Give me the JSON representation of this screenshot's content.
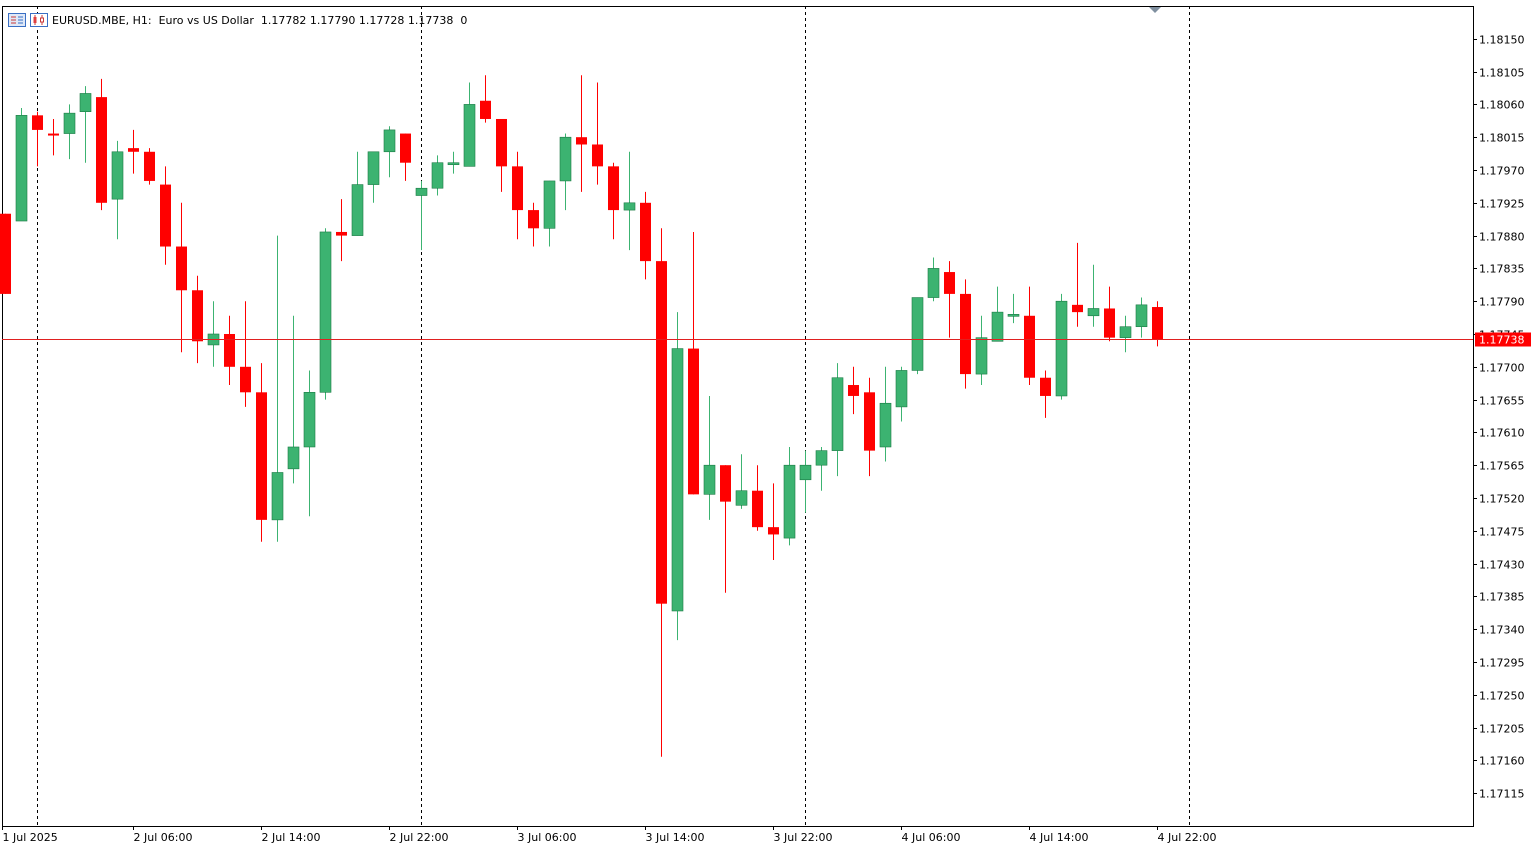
{
  "header": {
    "symbol": "EURUSD.MBE, H1:",
    "description": "Euro vs US Dollar",
    "ohlc": "1.17782 1.17790 1.17728 1.17738",
    "volume": "0"
  },
  "icons": {
    "menu": "chart-list-icon",
    "chart": "candlestick-chart-icon",
    "scroll_marker": "shift-marker-icon"
  },
  "colors": {
    "bull": "#3cb371",
    "bear": "#ff0000",
    "price_line": "#e02020",
    "axis": "#000000"
  },
  "chart_data": {
    "type": "candlestick",
    "symbol": "EURUSD.MBE",
    "timeframe": "H1",
    "ylim": [
      1.1707,
      1.18195
    ],
    "y_ticks": [
      "1.18150",
      "1.18105",
      "1.18060",
      "1.18015",
      "1.17970",
      "1.17925",
      "1.17880",
      "1.17835",
      "1.17790",
      "1.17745",
      "1.17700",
      "1.17655",
      "1.17610",
      "1.17565",
      "1.17520",
      "1.17475",
      "1.17430",
      "1.17385",
      "1.17340",
      "1.17295",
      "1.17250",
      "1.17205",
      "1.17160",
      "1.17115"
    ],
    "x_labels": [
      {
        "label": "1 Jul 2025",
        "index": -0.2
      },
      {
        "label": "2 Jul 06:00",
        "index": 8
      },
      {
        "label": "2 Jul 14:00",
        "index": 16
      },
      {
        "label": "2 Jul 22:00",
        "index": 24
      },
      {
        "label": "3 Jul 06:00",
        "index": 32
      },
      {
        "label": "3 Jul 14:00",
        "index": 40
      },
      {
        "label": "3 Jul 22:00",
        "index": 48
      },
      {
        "label": "4 Jul 06:00",
        "index": 56
      },
      {
        "label": "4 Jul 14:00",
        "index": 64
      },
      {
        "label": "4 Jul 22:00",
        "index": 72
      }
    ],
    "separators": [
      2,
      26,
      50,
      74
    ],
    "current_price": "1.17738",
    "grid": false,
    "candles": [
      [
        1.1791,
        1.1791,
        1.178,
        1.178
      ],
      [
        1.179,
        1.18055,
        1.179,
        1.18045
      ],
      [
        1.18045,
        1.1805,
        1.17975,
        1.18025
      ],
      [
        1.1802,
        1.1804,
        1.1799,
        1.18018
      ],
      [
        1.1802,
        1.1806,
        1.17985,
        1.18048
      ],
      [
        1.1805,
        1.18085,
        1.1798,
        1.18075
      ],
      [
        1.1807,
        1.18095,
        1.17915,
        1.17925
      ],
      [
        1.1793,
        1.1801,
        1.17875,
        1.17995
      ],
      [
        1.18,
        1.18025,
        1.17965,
        1.17995
      ],
      [
        1.17995,
        1.18,
        1.1795,
        1.17955
      ],
      [
        1.1795,
        1.17975,
        1.1784,
        1.17865
      ],
      [
        1.17865,
        1.17925,
        1.1772,
        1.17805
      ],
      [
        1.17805,
        1.17825,
        1.17705,
        1.17735
      ],
      [
        1.1773,
        1.1779,
        1.177,
        1.17745
      ],
      [
        1.17745,
        1.1777,
        1.17675,
        1.177
      ],
      [
        1.177,
        1.1779,
        1.17645,
        1.17665
      ],
      [
        1.17665,
        1.17705,
        1.1746,
        1.1749
      ],
      [
        1.1749,
        1.1788,
        1.1746,
        1.17555
      ],
      [
        1.1756,
        1.1777,
        1.1754,
        1.1759
      ],
      [
        1.1759,
        1.17695,
        1.17495,
        1.17665
      ],
      [
        1.17665,
        1.1789,
        1.17655,
        1.17885
      ],
      [
        1.17885,
        1.1793,
        1.17845,
        1.1788
      ],
      [
        1.1788,
        1.17995,
        1.1788,
        1.1795
      ],
      [
        1.1795,
        1.17995,
        1.17925,
        1.17995
      ],
      [
        1.17995,
        1.1803,
        1.1796,
        1.18025
      ],
      [
        1.1802,
        1.1802,
        1.17955,
        1.1798
      ],
      [
        1.17935,
        1.17955,
        1.1786,
        1.17945
      ],
      [
        1.17945,
        1.1799,
        1.17935,
        1.1798
      ],
      [
        1.17978,
        1.17995,
        1.17965,
        1.1798
      ],
      [
        1.17975,
        1.1809,
        1.17975,
        1.1806
      ],
      [
        1.18065,
        1.181,
        1.18035,
        1.1804
      ],
      [
        1.1804,
        1.1804,
        1.1794,
        1.17975
      ],
      [
        1.17975,
        1.17995,
        1.17875,
        1.17915
      ],
      [
        1.17915,
        1.17925,
        1.17865,
        1.1789
      ],
      [
        1.1789,
        1.17955,
        1.17865,
        1.17955
      ],
      [
        1.17955,
        1.1802,
        1.17915,
        1.18015
      ],
      [
        1.18015,
        1.181,
        1.1794,
        1.18005
      ],
      [
        1.18005,
        1.1809,
        1.1795,
        1.17975
      ],
      [
        1.17975,
        1.1798,
        1.17875,
        1.17915
      ],
      [
        1.17915,
        1.17995,
        1.1786,
        1.17925
      ],
      [
        1.17925,
        1.1794,
        1.1782,
        1.17845
      ],
      [
        1.17845,
        1.1789,
        1.17165,
        1.17375
      ],
      [
        1.17365,
        1.17775,
        1.17325,
        1.17725
      ],
      [
        1.17725,
        1.17885,
        1.17525,
        1.17525
      ],
      [
        1.17525,
        1.1766,
        1.1749,
        1.17565
      ],
      [
        1.17565,
        1.17565,
        1.1739,
        1.17515
      ],
      [
        1.1751,
        1.1758,
        1.17505,
        1.1753
      ],
      [
        1.1753,
        1.17565,
        1.17475,
        1.1748
      ],
      [
        1.1748,
        1.1754,
        1.17435,
        1.1747
      ],
      [
        1.17465,
        1.1759,
        1.17455,
        1.17565
      ],
      [
        1.17545,
        1.17585,
        1.175,
        1.17565
      ],
      [
        1.17565,
        1.1759,
        1.1753,
        1.17585
      ],
      [
        1.17585,
        1.17705,
        1.1755,
        1.17685
      ],
      [
        1.17675,
        1.177,
        1.17635,
        1.1766
      ],
      [
        1.17665,
        1.17685,
        1.1755,
        1.17585
      ],
      [
        1.1759,
        1.177,
        1.1757,
        1.1765
      ],
      [
        1.17645,
        1.177,
        1.17625,
        1.17695
      ],
      [
        1.17695,
        1.17795,
        1.1769,
        1.17795
      ],
      [
        1.17795,
        1.1785,
        1.1779,
        1.17835
      ],
      [
        1.1783,
        1.17845,
        1.1774,
        1.178
      ],
      [
        1.178,
        1.1782,
        1.1767,
        1.1769
      ],
      [
        1.1769,
        1.1777,
        1.17675,
        1.1774
      ],
      [
        1.17735,
        1.1781,
        1.17735,
        1.17775
      ],
      [
        1.1777,
        1.178,
        1.1776,
        1.17772
      ],
      [
        1.1777,
        1.1781,
        1.17675,
        1.17685
      ],
      [
        1.17685,
        1.17695,
        1.1763,
        1.1766
      ],
      [
        1.1766,
        1.178,
        1.17655,
        1.1779
      ],
      [
        1.17785,
        1.1787,
        1.17755,
        1.17775
      ],
      [
        1.1777,
        1.1784,
        1.17755,
        1.1778
      ],
      [
        1.1778,
        1.1781,
        1.17735,
        1.1774
      ],
      [
        1.1774,
        1.1777,
        1.1772,
        1.17755
      ],
      [
        1.17755,
        1.17795,
        1.1774,
        1.17785
      ],
      [
        1.17782,
        1.1779,
        1.17728,
        1.17738
      ]
    ]
  }
}
